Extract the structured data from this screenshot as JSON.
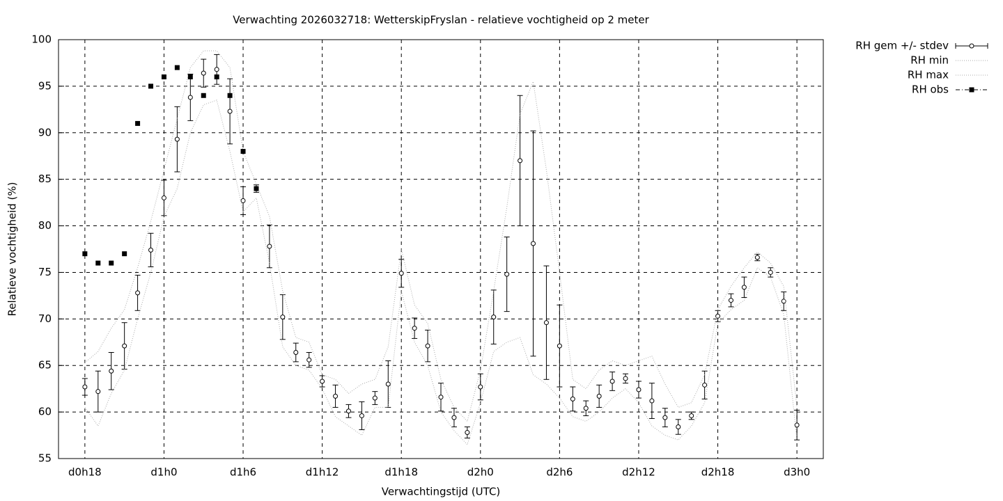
{
  "chart_data": {
    "type": "line",
    "title": "Verwachting 2026032718: WetterskipFryslan - relatieve vochtigheid op 2 meter",
    "x_label": "Verwachtingstijd (UTC)",
    "y_label": "Relatieve vochtigheid (%)",
    "xlim": [
      16,
      74
    ],
    "xticks": [
      {
        "value": 18,
        "label": "d0h18"
      },
      {
        "value": 24,
        "label": "d1h0"
      },
      {
        "value": 30,
        "label": "d1h6"
      },
      {
        "value": 36,
        "label": "d1h12"
      },
      {
        "value": 42,
        "label": "d1h18"
      },
      {
        "value": 48,
        "label": "d2h0"
      },
      {
        "value": 54,
        "label": "d2h6"
      },
      {
        "value": 60,
        "label": "d2h12"
      },
      {
        "value": 66,
        "label": "d2h18"
      },
      {
        "value": 72,
        "label": "d3h0"
      }
    ],
    "ylim": [
      55,
      100
    ],
    "yticks": [
      55,
      60,
      65,
      70,
      75,
      80,
      85,
      90,
      95,
      100
    ],
    "grid": true,
    "x": [
      18,
      19,
      20,
      21,
      22,
      23,
      24,
      25,
      26,
      27,
      28,
      29,
      30,
      31,
      32,
      33,
      34,
      35,
      36,
      37,
      38,
      39,
      40,
      41,
      42,
      43,
      44,
      45,
      46,
      47,
      48,
      49,
      50,
      51,
      52,
      53,
      54,
      55,
      56,
      57,
      58,
      59,
      60,
      61,
      62,
      63,
      64,
      65,
      66,
      67,
      68,
      69,
      70,
      71,
      72
    ],
    "series": [
      {
        "name": "RH gem +/- stdev",
        "color": "#000000",
        "style": "errorbar",
        "values": [
          62.7,
          62.2,
          64.4,
          67.1,
          72.8,
          77.4,
          83.0,
          89.3,
          93.8,
          96.4,
          96.8,
          92.3,
          82.7,
          84.0,
          77.8,
          70.2,
          66.4,
          65.6,
          63.3,
          61.7,
          60.1,
          59.6,
          61.5,
          63.0,
          74.9,
          69.0,
          67.1,
          61.6,
          59.4,
          57.8,
          62.7,
          70.2,
          74.8,
          87.0,
          78.1,
          69.6,
          67.1,
          61.4,
          60.4,
          61.7,
          63.3,
          63.6,
          62.4,
          61.2,
          59.4,
          58.4,
          59.6,
          62.9,
          70.3,
          72.0,
          73.4,
          76.6,
          75.0,
          71.9,
          58.6
        ],
        "errors": [
          0.9,
          2.2,
          2.0,
          2.5,
          1.9,
          1.8,
          1.9,
          3.5,
          2.5,
          1.5,
          1.6,
          3.5,
          1.5,
          0.4,
          2.3,
          2.4,
          1.0,
          0.8,
          0.6,
          1.2,
          0.7,
          1.5,
          0.7,
          2.5,
          1.5,
          1.1,
          1.7,
          1.5,
          1.0,
          0.6,
          1.4,
          2.9,
          4.0,
          7.0,
          12.1,
          6.1,
          4.4,
          1.3,
          0.8,
          1.2,
          1.0,
          0.5,
          0.9,
          1.9,
          1.0,
          0.8,
          0.4,
          1.5,
          0.6,
          0.7,
          1.1,
          0.35,
          0.5,
          1.0,
          1.6
        ]
      },
      {
        "name": "RH min",
        "color": "#aaaaaa",
        "style": "dotted",
        "values": [
          60.5,
          58.5,
          62,
          64.5,
          70,
          75,
          81,
          84,
          90,
          93,
          93.5,
          88,
          81.5,
          83,
          76,
          67,
          65,
          64.5,
          62.5,
          59.5,
          58.5,
          57.5,
          60.5,
          60.5,
          73,
          67.5,
          65,
          60,
          58,
          56.5,
          61,
          66.5,
          67.5,
          68,
          64,
          63,
          61.5,
          59.5,
          59,
          60,
          61.5,
          62.5,
          61,
          58.5,
          57.5,
          57,
          58.5,
          61,
          69.5,
          71,
          72,
          75.5,
          74.5,
          70.5,
          57
        ]
      },
      {
        "name": "RH max",
        "color": "#aaaaaa",
        "style": "dotted",
        "values": [
          65.3,
          66.5,
          69,
          71,
          75.5,
          80.5,
          86,
          91.5,
          97,
          98.8,
          98.8,
          97,
          88,
          84.5,
          81,
          73,
          68,
          67.5,
          64,
          63.5,
          62,
          63,
          63.5,
          67,
          77.5,
          71.5,
          69.5,
          63.5,
          60.5,
          59,
          64.5,
          73,
          82,
          92,
          95.5,
          86,
          75,
          63.5,
          62.5,
          64.5,
          65.5,
          65,
          65.5,
          66,
          63,
          60.5,
          61,
          64,
          71,
          73.5,
          75.5,
          77.2,
          76,
          73.5,
          60.5
        ]
      },
      {
        "name": "RH obs",
        "color": "#000000",
        "style": "points",
        "x": [
          18,
          19,
          20,
          21,
          22,
          23,
          24,
          25,
          26,
          27,
          28,
          29,
          30,
          31
        ],
        "values": [
          77,
          76,
          76,
          77,
          91,
          95,
          96,
          97,
          96,
          94,
          96,
          94,
          88,
          84
        ]
      }
    ]
  }
}
